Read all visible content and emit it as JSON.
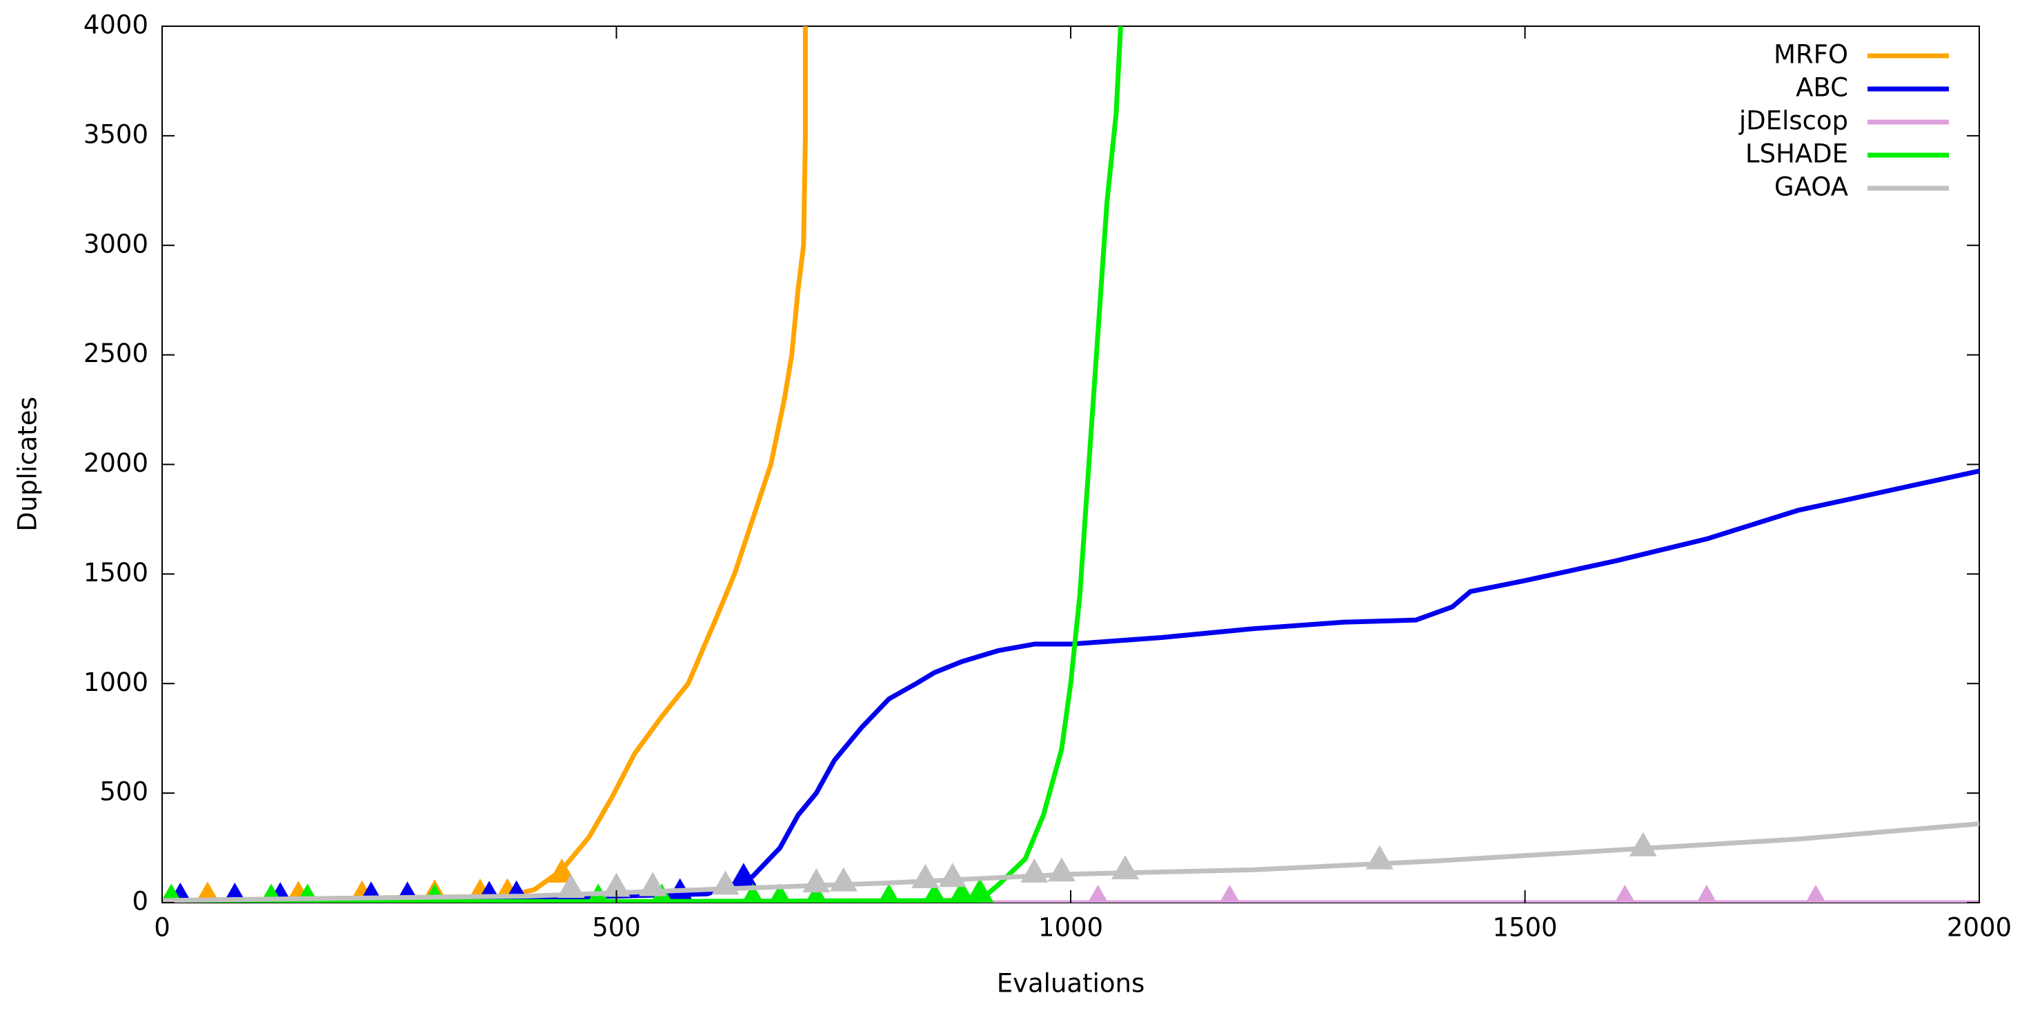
{
  "chart_data": {
    "type": "line",
    "x_label": "Evaluations",
    "y_label": "Duplicates",
    "xlim": [
      0,
      2000
    ],
    "ylim": [
      0,
      4000
    ],
    "xticks": [
      0,
      500,
      1000,
      1500,
      2000
    ],
    "yticks": [
      0,
      500,
      1000,
      1500,
      2000,
      2500,
      3000,
      3500,
      4000
    ],
    "legend": "top-right",
    "series": [
      {
        "name": "MRFO",
        "color": "#ffa500",
        "x": [
          0,
          100,
          200,
          300,
          380,
          410,
          440,
          470,
          495,
          520,
          550,
          579,
          610,
          630,
          650,
          670,
          685,
          693,
          700,
          706,
          708,
          708
        ],
        "values": [
          10,
          15,
          20,
          25,
          30,
          60,
          150,
          300,
          480,
          680,
          850,
          1000,
          1300,
          1500,
          1750,
          2000,
          2300,
          2500,
          2800,
          3000,
          3500,
          4000
        ],
        "marker_x": [
          50,
          150,
          220,
          300,
          350,
          380,
          440
        ],
        "marker_values": [
          15,
          18,
          20,
          25,
          28,
          30,
          120
        ]
      },
      {
        "name": "ABC",
        "color": "#0000ee",
        "x": [
          0,
          200,
          400,
          600,
          620,
          650,
          680,
          700,
          720,
          740,
          770,
          800,
          830,
          850,
          880,
          920,
          960,
          1000,
          1100,
          1200,
          1300,
          1380,
          1420,
          1440,
          1500,
          1600,
          1700,
          1800,
          1900,
          2000
        ],
        "values": [
          10,
          15,
          20,
          40,
          70,
          120,
          250,
          400,
          500,
          650,
          800,
          930,
          1000,
          1050,
          1100,
          1150,
          1180,
          1180,
          1210,
          1250,
          1280,
          1290,
          1350,
          1420,
          1470,
          1560,
          1660,
          1790,
          1880,
          1970
        ],
        "marker_x": [
          20,
          80,
          130,
          230,
          270,
          360,
          390,
          570,
          640
        ],
        "marker_values": [
          10,
          10,
          12,
          15,
          15,
          18,
          20,
          30,
          100
        ]
      },
      {
        "name": "jDElscop",
        "color": "#dda0dd",
        "x": [
          0,
          2000
        ],
        "values": [
          0,
          0
        ],
        "marker_x": [
          1030,
          1175,
          1610,
          1700,
          1820
        ],
        "marker_values": [
          0,
          0,
          0,
          0,
          0
        ]
      },
      {
        "name": "LSHADE",
        "color": "#00ee00",
        "x": [
          0,
          500,
          900,
          920,
          950,
          970,
          990,
          1000,
          1010,
          1020,
          1030,
          1040,
          1050,
          1055
        ],
        "values": [
          5,
          5,
          10,
          80,
          200,
          400,
          700,
          1000,
          1400,
          2000,
          2600,
          3200,
          3600,
          4000
        ],
        "marker_x": [
          10,
          120,
          160,
          300,
          480,
          550,
          650,
          680,
          720,
          800,
          850,
          880,
          900
        ],
        "marker_values": [
          5,
          5,
          5,
          5,
          5,
          5,
          5,
          5,
          5,
          5,
          10,
          20,
          30
        ]
      },
      {
        "name": "GAOA",
        "color": "#c0c0c0",
        "x": [
          0,
          200,
          400,
          600,
          800,
          1000,
          1200,
          1400,
          1600,
          1800,
          2000
        ],
        "values": [
          10,
          20,
          30,
          60,
          90,
          130,
          150,
          190,
          240,
          290,
          360
        ],
        "marker_x": [
          450,
          500,
          540,
          620,
          720,
          750,
          840,
          870,
          960,
          990,
          1060,
          1340,
          1630
        ],
        "marker_values": [
          50,
          55,
          58,
          65,
          75,
          80,
          95,
          100,
          120,
          125,
          135,
          180,
          240
        ]
      }
    ]
  }
}
